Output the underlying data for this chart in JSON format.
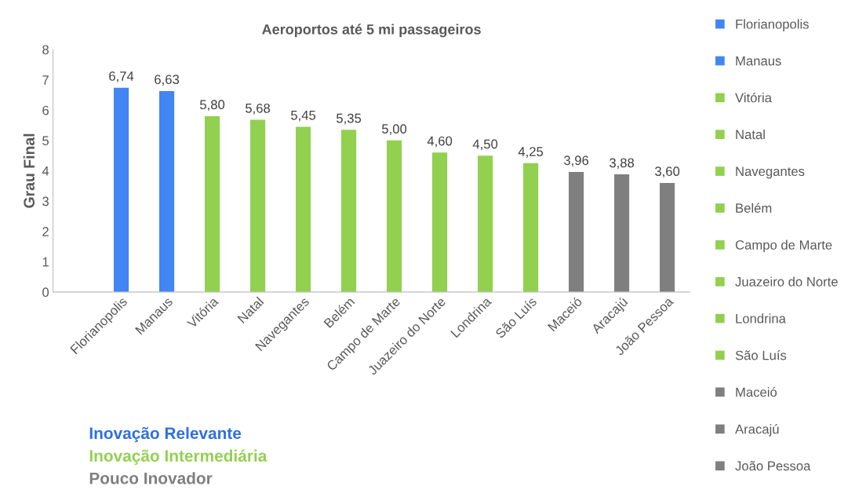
{
  "chart_data": {
    "type": "bar",
    "title": "Aeroportos até 5 mi passageiros",
    "ylabel": "Grau Final",
    "categories": [
      null,
      "Florianopolis",
      "Manaus",
      "Vitória",
      "Natal",
      "Navegantes",
      "Belém",
      "Campo de Marte",
      "Juazeiro do Norte",
      "Londrina",
      "São Luís",
      "Maceió",
      "Aracajú",
      "João Pessoa"
    ],
    "series": [
      {
        "name": "Florianopolis",
        "color": "#4285f4",
        "values": [
          null,
          6.74,
          null,
          null,
          null,
          null,
          null,
          null,
          null,
          null,
          null,
          null,
          null,
          null
        ],
        "value_labels": [
          null,
          "6,74",
          null,
          null,
          null,
          null,
          null,
          null,
          null,
          null,
          null,
          null,
          null,
          null
        ]
      },
      {
        "name": "Manaus",
        "color": "#4285f4",
        "values": [
          null,
          null,
          6.63,
          null,
          null,
          null,
          null,
          null,
          null,
          null,
          null,
          null,
          null,
          null
        ],
        "value_labels": [
          null,
          null,
          "6,63",
          null,
          null,
          null,
          null,
          null,
          null,
          null,
          null,
          null,
          null,
          null
        ]
      },
      {
        "name": "Vitória",
        "color": "#92d050",
        "values": [
          null,
          null,
          null,
          5.8,
          null,
          null,
          null,
          null,
          null,
          null,
          null,
          null,
          null,
          null
        ],
        "value_labels": [
          null,
          null,
          null,
          "5,80",
          null,
          null,
          null,
          null,
          null,
          null,
          null,
          null,
          null,
          null
        ]
      },
      {
        "name": "Natal",
        "color": "#92d050",
        "values": [
          null,
          null,
          null,
          null,
          5.68,
          null,
          null,
          null,
          null,
          null,
          null,
          null,
          null,
          null
        ],
        "value_labels": [
          null,
          null,
          null,
          null,
          "5,68",
          null,
          null,
          null,
          null,
          null,
          null,
          null,
          null,
          null
        ]
      },
      {
        "name": "Navegantes",
        "color": "#92d050",
        "values": [
          null,
          null,
          null,
          null,
          null,
          5.45,
          null,
          null,
          null,
          null,
          null,
          null,
          null,
          null
        ],
        "value_labels": [
          null,
          null,
          null,
          null,
          null,
          "5,45",
          null,
          null,
          null,
          null,
          null,
          null,
          null,
          null
        ]
      },
      {
        "name": "Belém",
        "color": "#92d050",
        "values": [
          null,
          null,
          null,
          null,
          null,
          null,
          5.35,
          null,
          null,
          null,
          null,
          null,
          null,
          null
        ],
        "value_labels": [
          null,
          null,
          null,
          null,
          null,
          null,
          "5,35",
          null,
          null,
          null,
          null,
          null,
          null,
          null
        ]
      },
      {
        "name": "Campo de Marte",
        "color": "#92d050",
        "values": [
          null,
          null,
          null,
          null,
          null,
          null,
          null,
          5.0,
          null,
          null,
          null,
          null,
          null,
          null
        ],
        "value_labels": [
          null,
          null,
          null,
          null,
          null,
          null,
          null,
          "5,00",
          null,
          null,
          null,
          null,
          null,
          null
        ]
      },
      {
        "name": "Juazeiro do Norte",
        "color": "#92d050",
        "values": [
          null,
          null,
          null,
          null,
          null,
          null,
          null,
          null,
          4.6,
          null,
          null,
          null,
          null,
          null
        ],
        "value_labels": [
          null,
          null,
          null,
          null,
          null,
          null,
          null,
          null,
          "4,60",
          null,
          null,
          null,
          null,
          null
        ]
      },
      {
        "name": "Londrina",
        "color": "#92d050",
        "values": [
          null,
          null,
          null,
          null,
          null,
          null,
          null,
          null,
          null,
          4.5,
          null,
          null,
          null,
          null
        ],
        "value_labels": [
          null,
          null,
          null,
          null,
          null,
          null,
          null,
          null,
          null,
          "4,50",
          null,
          null,
          null,
          null
        ]
      },
      {
        "name": "São Luís",
        "color": "#92d050",
        "values": [
          null,
          null,
          null,
          null,
          null,
          null,
          null,
          null,
          null,
          null,
          4.25,
          null,
          null,
          null
        ],
        "value_labels": [
          null,
          null,
          null,
          null,
          null,
          null,
          null,
          null,
          null,
          null,
          "4,25",
          null,
          null,
          null
        ]
      },
      {
        "name": "Maceió",
        "color": "#7f7f7f",
        "values": [
          null,
          null,
          null,
          null,
          null,
          null,
          null,
          null,
          null,
          null,
          null,
          3.96,
          null,
          null
        ],
        "value_labels": [
          null,
          null,
          null,
          null,
          null,
          null,
          null,
          null,
          null,
          null,
          null,
          "3,96",
          null,
          null
        ]
      },
      {
        "name": "Aracajú",
        "color": "#7f7f7f",
        "values": [
          null,
          null,
          null,
          null,
          null,
          null,
          null,
          null,
          null,
          null,
          null,
          null,
          3.88,
          null
        ],
        "value_labels": [
          null,
          null,
          null,
          null,
          null,
          null,
          null,
          null,
          null,
          null,
          null,
          null,
          "3,88",
          null
        ]
      },
      {
        "name": "João Pessoa",
        "color": "#7f7f7f",
        "values": [
          null,
          null,
          null,
          null,
          null,
          null,
          null,
          null,
          null,
          null,
          null,
          null,
          null,
          3.6
        ],
        "value_labels": [
          null,
          null,
          null,
          null,
          null,
          null,
          null,
          null,
          null,
          null,
          null,
          null,
          null,
          "3,60"
        ]
      }
    ],
    "ylim": [
      0,
      8
    ],
    "yticks": [
      0,
      1,
      2,
      3,
      4,
      5,
      6,
      7,
      8
    ],
    "grid": false,
    "legend": "right",
    "annotations": [
      "Inovação Relevante",
      "Inovação Intermediária",
      "Pouco Inovador"
    ]
  }
}
